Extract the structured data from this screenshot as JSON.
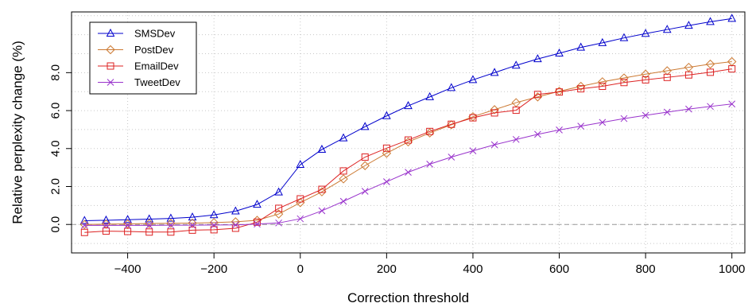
{
  "chart_data": {
    "type": "line",
    "title": "",
    "xlabel": "Correction threshold",
    "ylabel": "Relative perplexity change (%)",
    "xlim": [
      -530,
      1030
    ],
    "ylim": [
      -1.5,
      11.2
    ],
    "x_ticks": [
      -400,
      -200,
      0,
      200,
      400,
      600,
      800,
      1000
    ],
    "x_tick_labels": [
      "−400",
      "−200",
      "0",
      "200",
      "400",
      "600",
      "800",
      "1000"
    ],
    "y_ticks": [
      0,
      2,
      4,
      6,
      8
    ],
    "y_tick_labels": [
      "0.0",
      "2.0",
      "4.0",
      "6.0",
      "8.0"
    ],
    "grid": true,
    "reference_line": 0,
    "legend_position": "top-left",
    "x": [
      -500,
      -450,
      -400,
      -350,
      -300,
      -250,
      -200,
      -150,
      -100,
      -50,
      0,
      50,
      100,
      150,
      200,
      250,
      300,
      350,
      400,
      450,
      500,
      550,
      600,
      650,
      700,
      750,
      800,
      850,
      900,
      950,
      1000
    ],
    "series": [
      {
        "name": "SMSDev",
        "color": "#0000cc",
        "marker": "triangle",
        "values": [
          0.2,
          0.22,
          0.25,
          0.28,
          0.32,
          0.38,
          0.5,
          0.7,
          1.05,
          1.7,
          3.15,
          3.95,
          4.55,
          5.15,
          5.72,
          6.25,
          6.72,
          7.2,
          7.62,
          8.0,
          8.38,
          8.72,
          9.02,
          9.33,
          9.57,
          9.83,
          10.06,
          10.27,
          10.48,
          10.68,
          10.85
        ]
      },
      {
        "name": "PostDev",
        "color": "#cc7a33",
        "marker": "diamond",
        "values": [
          0.0,
          0.02,
          0.03,
          0.05,
          0.06,
          0.07,
          0.1,
          0.14,
          0.22,
          0.55,
          1.15,
          1.72,
          2.4,
          3.1,
          3.75,
          4.35,
          4.82,
          5.25,
          5.68,
          6.05,
          6.42,
          6.72,
          7.02,
          7.28,
          7.52,
          7.72,
          7.92,
          8.1,
          8.28,
          8.45,
          8.58
        ]
      },
      {
        "name": "EmailDev",
        "color": "#dd2222",
        "marker": "square",
        "values": [
          -0.42,
          -0.35,
          -0.37,
          -0.4,
          -0.4,
          -0.3,
          -0.28,
          -0.2,
          0.12,
          0.85,
          1.35,
          1.85,
          2.82,
          3.55,
          4.02,
          4.45,
          4.9,
          5.28,
          5.62,
          5.88,
          6.02,
          6.85,
          6.98,
          7.15,
          7.28,
          7.48,
          7.62,
          7.75,
          7.88,
          8.02,
          8.2
        ]
      },
      {
        "name": "TweetDev",
        "color": "#9933cc",
        "marker": "x",
        "values": [
          -0.05,
          -0.05,
          -0.05,
          -0.05,
          -0.04,
          -0.04,
          -0.03,
          -0.02,
          0.02,
          0.08,
          0.3,
          0.72,
          1.22,
          1.75,
          2.25,
          2.75,
          3.18,
          3.55,
          3.88,
          4.2,
          4.48,
          4.75,
          4.98,
          5.18,
          5.38,
          5.58,
          5.75,
          5.92,
          6.08,
          6.22,
          6.35
        ]
      }
    ]
  }
}
